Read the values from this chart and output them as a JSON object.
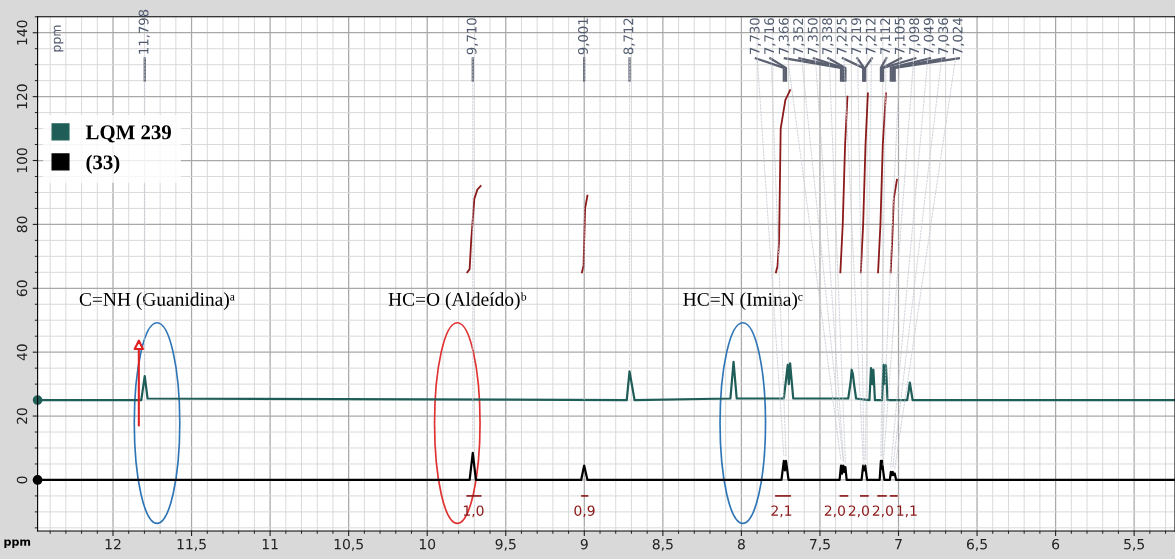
{
  "chart_data": {
    "type": "line",
    "xlabel": "ppm",
    "xlim": [
      12.48,
      5.24
    ],
    "ylim": [
      -16,
      145
    ],
    "xticks": [
      {
        "value": 12,
        "label": "12"
      },
      {
        "value": 11.5,
        "label": "11,5"
      },
      {
        "value": 11,
        "label": "11"
      },
      {
        "value": 10.5,
        "label": "10,5"
      },
      {
        "value": 10,
        "label": "10"
      },
      {
        "value": 9.5,
        "label": "9,5"
      },
      {
        "value": 9,
        "label": "9"
      },
      {
        "value": 8.5,
        "label": "8,5"
      },
      {
        "value": 8,
        "label": "8"
      },
      {
        "value": 7.5,
        "label": "7,5"
      },
      {
        "value": 7,
        "label": "7"
      },
      {
        "value": 6.5,
        "label": "6,5"
      },
      {
        "value": 6,
        "label": "6"
      },
      {
        "value": 5.5,
        "label": "5,5"
      }
    ],
    "yticks": [
      0,
      20,
      40,
      60,
      80,
      100,
      120,
      140
    ],
    "grid": true,
    "legend": "top left",
    "series": [
      {
        "name": "LQM 239",
        "color": "#1f5e58",
        "x": [
          12.48,
          11.82,
          11.798,
          11.78,
          8.73,
          8.712,
          8.68,
          8.07,
          8.05,
          8.03,
          7.73,
          7.705,
          7.698,
          7.69,
          7.67,
          7.32,
          7.305,
          7.298,
          7.29,
          7.283,
          7.27,
          7.185,
          7.175,
          7.167,
          7.16,
          7.15,
          7.105,
          7.095,
          7.088,
          7.08,
          7.07,
          6.945,
          6.935,
          6.928,
          6.92,
          6.91,
          5.24
        ],
        "values": [
          25,
          25,
          32.5,
          25.5,
          25,
          34,
          25,
          25.5,
          37,
          25.5,
          25.5,
          36,
          30,
          36.5,
          25.5,
          25.5,
          30.5,
          34.5,
          33,
          30,
          25.5,
          25,
          35,
          30,
          34.5,
          25,
          25,
          36,
          30,
          36,
          25,
          25,
          28,
          30.5,
          28,
          25,
          25
        ]
      },
      {
        "name": "(33)",
        "color": "#000000",
        "x": [
          12.48,
          9.73,
          9.71,
          9.69,
          9.02,
          9.001,
          8.98,
          7.745,
          7.73,
          7.723,
          7.716,
          7.7,
          7.375,
          7.366,
          7.359,
          7.352,
          7.35,
          7.345,
          7.338,
          7.33,
          7.235,
          7.225,
          7.219,
          7.212,
          7.2,
          7.12,
          7.112,
          7.108,
          7.105,
          7.098,
          7.09,
          7.055,
          7.049,
          7.042,
          7.036,
          7.03,
          7.024,
          7.015,
          5.24
        ],
        "values": [
          0,
          0,
          8.5,
          0,
          0,
          4.5,
          0,
          0,
          6,
          3,
          6,
          0,
          0,
          4.5,
          2,
          4.5,
          4.3,
          2.5,
          4,
          0,
          0,
          4.5,
          3,
          4.5,
          0,
          0,
          6,
          3.5,
          6,
          3,
          0,
          0,
          2.5,
          1.5,
          2.5,
          1.5,
          2,
          0,
          0
        ]
      },
      {
        "color": "#8b1a1a",
        "x": [
          9.745,
          9.73,
          9.72,
          9.7,
          9.68,
          9.66
        ],
        "values": [
          65,
          66,
          75,
          88,
          91,
          92
        ]
      },
      {
        "color": "#8b1a1a",
        "x": [
          9.015,
          9.005,
          8.995,
          8.98
        ],
        "values": [
          65,
          67,
          85,
          89
        ]
      },
      {
        "color": "#8b1a1a",
        "x": [
          7.78,
          7.77,
          7.76,
          7.75,
          7.72,
          7.69
        ],
        "values": [
          65,
          67,
          75,
          110,
          119,
          122
        ]
      },
      {
        "color": "#8b1a1a",
        "x": [
          7.37,
          7.355,
          7.34,
          7.325
        ],
        "values": [
          65,
          80,
          105,
          120
        ]
      },
      {
        "color": "#8b1a1a",
        "x": [
          7.24,
          7.225,
          7.21,
          7.195
        ],
        "values": [
          65,
          80,
          105,
          121
        ]
      },
      {
        "color": "#8b1a1a",
        "x": [
          7.13,
          7.115,
          7.1,
          7.08
        ],
        "values": [
          65,
          80,
          105,
          121
        ]
      },
      {
        "color": "#8b1a1a",
        "x": [
          7.05,
          7.04,
          7.03,
          7.01
        ],
        "values": [
          65,
          75,
          88,
          94
        ]
      }
    ],
    "annotations": [
      "ppm",
      {
        "text": "11,798",
        "x": 11.798,
        "y": 32.5
      },
      {
        "text": "9,710",
        "x": 9.71,
        "y": 8.5
      },
      {
        "text": "9,001",
        "x": 9.001,
        "y": 4.5
      },
      {
        "text": "8,712",
        "x": 8.712,
        "y": 34
      },
      {
        "text": "7,730",
        "x": 7.73,
        "y": 6
      },
      {
        "text": "7,716",
        "x": 7.716,
        "y": 6
      },
      {
        "text": "7,366",
        "x": 7.366,
        "y": 4.5
      },
      {
        "text": "7,352",
        "x": 7.352,
        "y": 4.5
      },
      {
        "text": "7,350",
        "x": 7.35,
        "y": 4.3
      },
      {
        "text": "7,338",
        "x": 7.338,
        "y": 4
      },
      {
        "text": "7,225",
        "x": 7.225,
        "y": 4.5
      },
      {
        "text": "7,219",
        "x": 7.219,
        "y": 3
      },
      {
        "text": "7,212",
        "x": 7.212,
        "y": 4.5
      },
      {
        "text": "7,112",
        "x": 7.112,
        "y": 6
      },
      {
        "text": "7,105",
        "x": 7.105,
        "y": 6
      },
      {
        "text": "7,098",
        "x": 7.098,
        "y": 3
      },
      {
        "text": "7,049",
        "x": 7.049,
        "y": 2.5
      },
      {
        "text": "7,036",
        "x": 7.036,
        "y": 2.5
      },
      {
        "text": "7,024",
        "x": 7.024,
        "y": 2
      },
      "C=NH (Guanidina)ᵃ",
      "HC=O (Aldeído)ᵇ",
      "HC=N (Imina)ᶜ",
      "1,0",
      "0,9",
      "2,1",
      "2,0",
      "2,0",
      "2,0",
      "1,1"
    ]
  }
}
